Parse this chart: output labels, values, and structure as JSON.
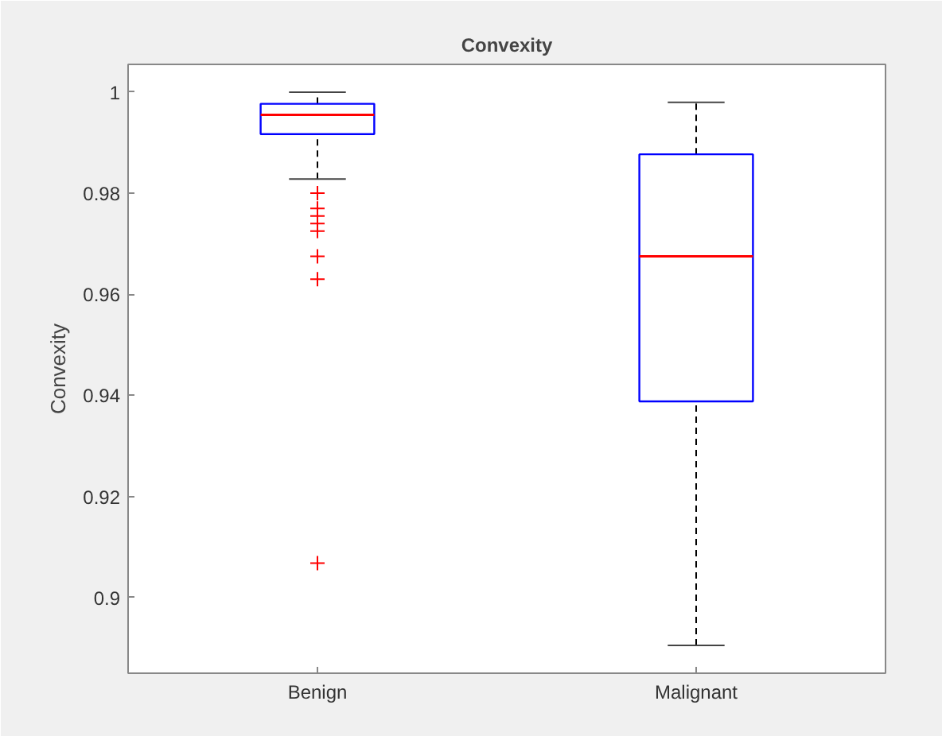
{
  "chart_data": {
    "type": "box",
    "title": "Convexity",
    "ylabel": "Convexity",
    "categories": [
      "Benign",
      "Malignant"
    ],
    "series": [
      {
        "color": "#0000ff",
        "boxes": [
          {
            "low": 0.9828,
            "q1": 0.9917,
            "median": 0.9955,
            "q3": 0.9977,
            "high": 1,
            "outliers": [
              0.98,
              0.977,
              0.9755,
              0.974,
              0.9725,
              0.9675,
              0.963,
              0.9068
            ]
          },
          {
            "low": 0.8905,
            "q1": 0.9388,
            "median": 0.9675,
            "q3": 0.9877,
            "high": 0.998
          }
        ]
      }
    ],
    "ylim": [
      0.885,
      1.0055
    ],
    "yticks": [
      0.9,
      0.92,
      0.94,
      0.96,
      0.98,
      1
    ],
    "grid": false
  }
}
